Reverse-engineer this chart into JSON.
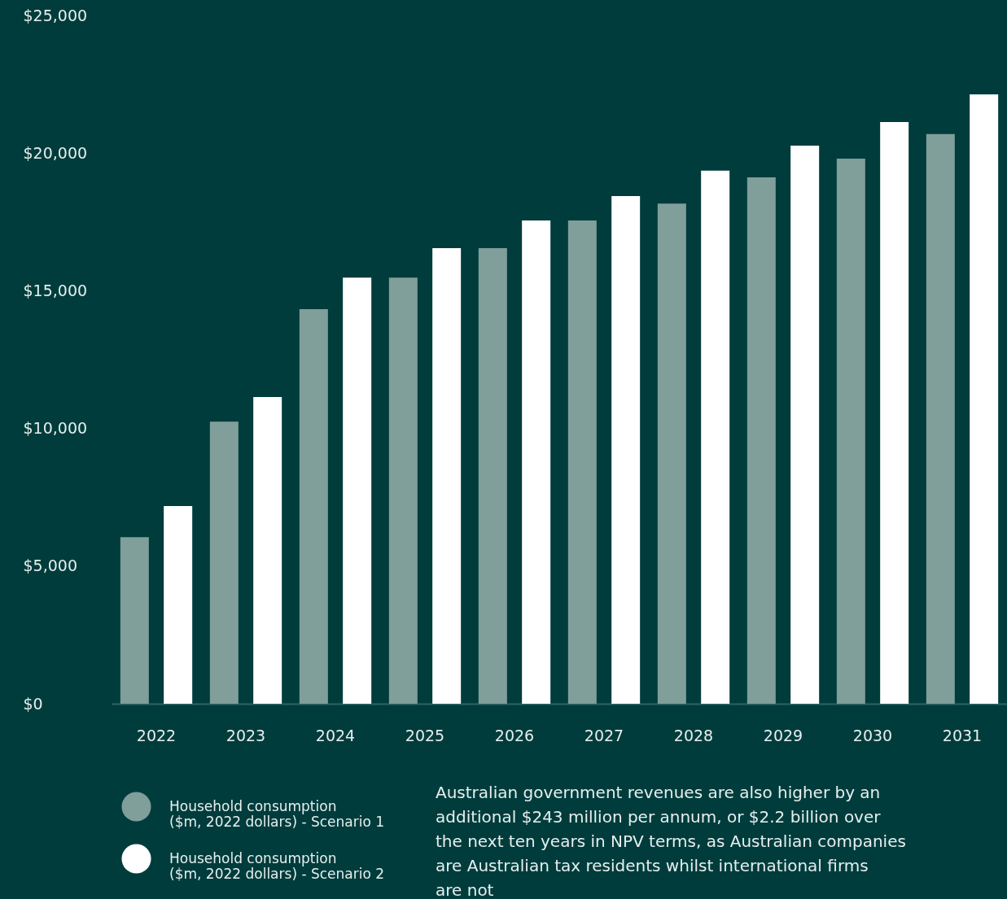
{
  "chart_data": {
    "type": "bar",
    "categories": [
      "2022",
      "2023",
      "2024",
      "2025",
      "2026",
      "2027",
      "2028",
      "2029",
      "2030",
      "2031"
    ],
    "series": [
      {
        "name": "Household consumption ($m, 2022 dollars) - Scenario 1",
        "color": "#809e9a",
        "values": [
          6050,
          10250,
          14330,
          15480,
          16550,
          17550,
          18170,
          19120,
          19800,
          20690
        ]
      },
      {
        "name": "Household consumption ($m, 2022 dollars) - Scenario 2",
        "color": "#ffffff",
        "values": [
          7180,
          11140,
          15480,
          16550,
          17550,
          18440,
          19360,
          20270,
          21130,
          22130
        ]
      }
    ],
    "ylim": [
      0,
      25000
    ],
    "yticks": [
      {
        "value": 0,
        "label": "$0"
      },
      {
        "value": 5000,
        "label": "$5,000"
      },
      {
        "value": 10000,
        "label": "$10,000"
      },
      {
        "value": 15000,
        "label": "$15,000"
      },
      {
        "value": 20000,
        "label": "$20,000"
      },
      {
        "value": 25000,
        "label": "$25,000"
      }
    ],
    "grid": false,
    "legend": "bottom left",
    "annotations": [
      "Australian government revenues are also higher by an additional $243 million per annum, or $2.2 billion over the next ten years in NPV terms, as Australian companies are Australian tax residents whilst international firms are not"
    ]
  }
}
